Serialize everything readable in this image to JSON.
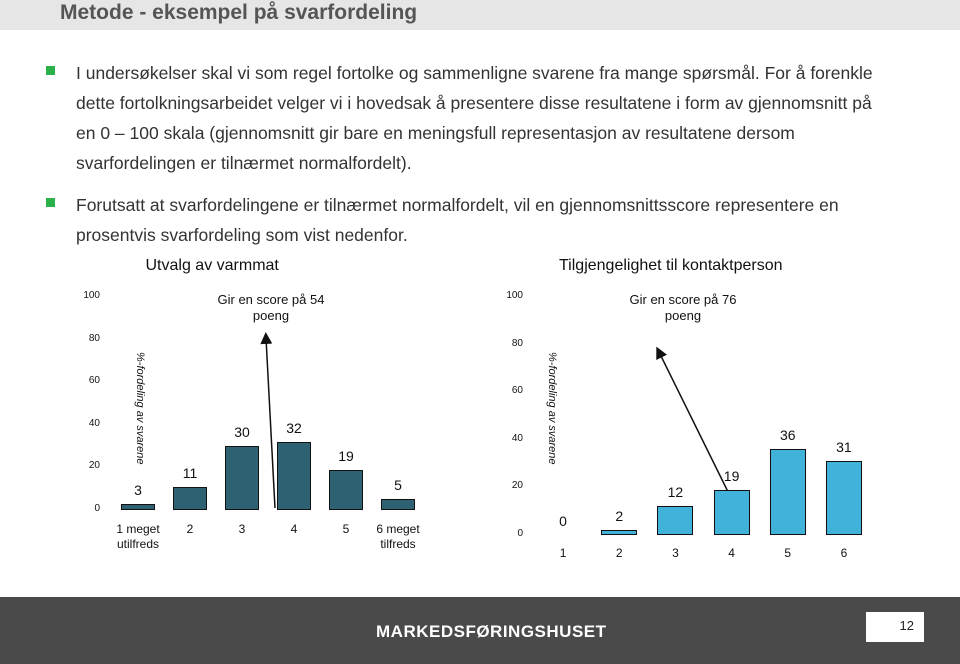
{
  "title": "Metode - eksempel på svarfordeling",
  "bullets": [
    "I undersøkelser skal vi som regel fortolke og sammenligne svarene fra mange spørsmål. For å forenkle dette fortolkningsarbeidet velger vi i hovedsak å presentere disse resultatene i form av gjennomsnitt på en 0 – 100 skala (gjennomsnitt gir bare en meningsfull representasjon av resultatene dersom svarfordelingen er tilnærmet normalfordelt).",
    "Forutsatt at svarfordelingene er tilnærmet normalfordelt, vil en gjennomsnittsscore representere en prosentvis svarfordeling som vist nedenfor."
  ],
  "chart_data": [
    {
      "type": "bar",
      "title": "Utvalg av varmmat",
      "annotation": "Gir en score på 54 poeng",
      "y_label": "%-fordeling av svarene",
      "categories": [
        "1 meget utilfreds",
        "2",
        "3",
        "4",
        "5",
        "6 meget tilfreds"
      ],
      "values": [
        3,
        11,
        30,
        32,
        19,
        5
      ],
      "color": "#2e6272",
      "ylim": [
        0,
        100
      ],
      "yticks": [
        0,
        20,
        40,
        60,
        80,
        100
      ]
    },
    {
      "type": "bar",
      "title": "Tilgjengelighet til kontaktperson",
      "annotation": "Gir en score på 76 poeng",
      "y_label": "%-fordeling av svarene",
      "categories": [
        "1",
        "2",
        "3",
        "4",
        "5",
        "6"
      ],
      "values": [
        0,
        2,
        12,
        19,
        36,
        31
      ],
      "color": "#41b2d9",
      "ylim": [
        0,
        100
      ],
      "yticks": [
        0,
        20,
        40,
        60,
        80,
        100
      ]
    }
  ],
  "footer": {
    "logo": "MARKEDSFØRINGSHUSET",
    "page": "12"
  }
}
